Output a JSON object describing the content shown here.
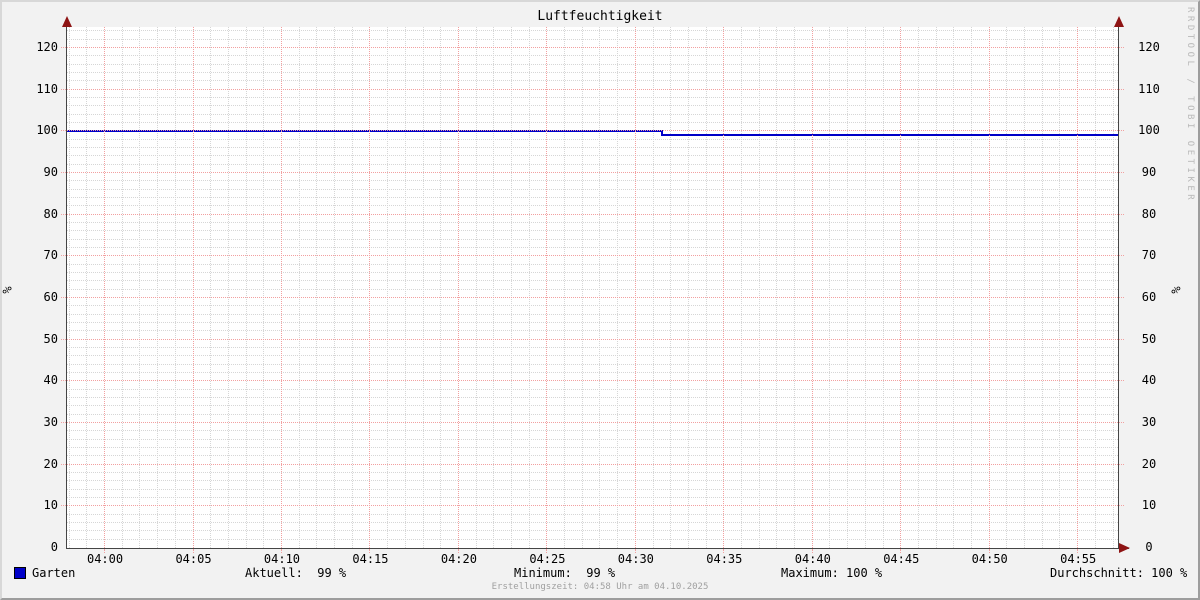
{
  "title": "Luftfeuchtigkeit",
  "watermark": "RRDTOOL / TOBI OETIKER",
  "y_axis": {
    "left_label": "%",
    "right_label": "%"
  },
  "legend": {
    "series_name": "Garten",
    "series_color": "#0000c8"
  },
  "stats": {
    "aktuell": {
      "label": "Aktuell:",
      "value": "99 %"
    },
    "minimum": {
      "label": "Minimum:",
      "value": "99 %"
    },
    "maximum": {
      "label": "Maximum:",
      "value": "100 %"
    },
    "durchschnitt": {
      "label": "Durchschnitt:",
      "value": "100 %"
    }
  },
  "footer": {
    "creation_time": "Erstellungszeit: 04:58 Uhr am 04.10.2025"
  },
  "chart_data": {
    "type": "line",
    "title": "Luftfeuchtigkeit",
    "xlabel": "",
    "ylabel": "%",
    "ylim": [
      0,
      125
    ],
    "y_tick_step_major": 10,
    "y_tick_step_minor": 2,
    "y_tick_labels": [
      "0",
      "10",
      "20",
      "30",
      "40",
      "50",
      "60",
      "70",
      "80",
      "90",
      "100",
      "110",
      "120"
    ],
    "x_tick_labels": [
      "04:00",
      "04:05",
      "04:10",
      "04:15",
      "04:20",
      "04:25",
      "04:30",
      "04:35",
      "04:40",
      "04:45",
      "04:50",
      "04:55"
    ],
    "x_minor_per_major": 5,
    "x_start_offset_min": 2.15,
    "x_total_minutes": 59.4,
    "grid": {
      "minor_color": "#d6d6d6",
      "major_color": "#f2a0a0"
    },
    "legend_position": "bottom",
    "series": [
      {
        "name": "Garten",
        "color": "#0000c8",
        "points_minutes_from_0400_vs_percent": [
          [
            -2.15,
            100
          ],
          [
            31.5,
            100
          ],
          [
            31.5,
            99
          ],
          [
            57.25,
            99
          ]
        ]
      }
    ]
  }
}
